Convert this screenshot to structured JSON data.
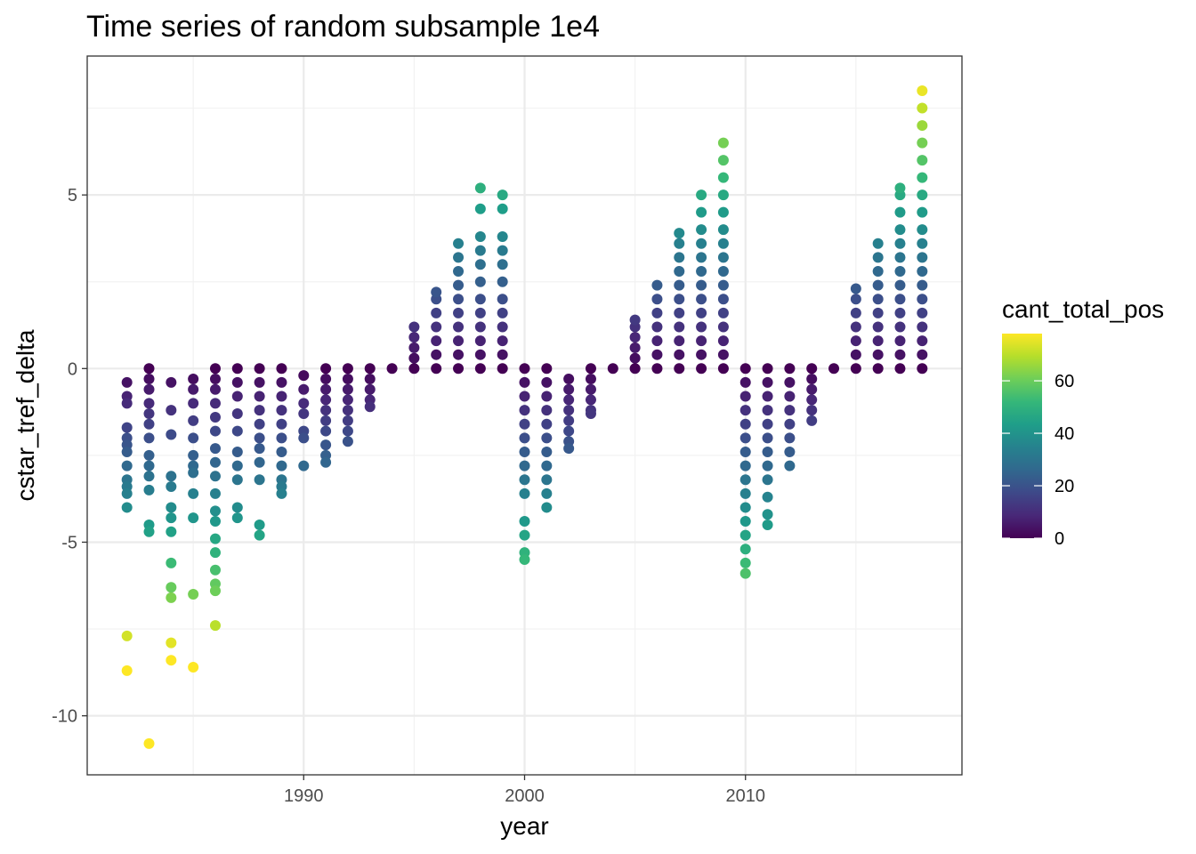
{
  "chart_data": {
    "type": "scatter",
    "title": "Time series of random subsample 1e4",
    "xlabel": "year",
    "ylabel": "cstar_tref_delta",
    "xlim": [
      1980.2,
      2019.8
    ],
    "ylim": [
      -11.7,
      9.0
    ],
    "x_ticks": [
      {
        "value": 1990,
        "label": "1990"
      },
      {
        "value": 2000,
        "label": "2000"
      },
      {
        "value": 2010,
        "label": "2010"
      }
    ],
    "y_ticks": [
      {
        "value": -10,
        "label": "-10"
      },
      {
        "value": -5,
        "label": "-5"
      },
      {
        "value": 0,
        "label": "0"
      },
      {
        "value": 5,
        "label": "5"
      }
    ],
    "grid": true,
    "color_variable": "cant_total_pos",
    "color_scale": {
      "name": "viridis",
      "min": 0,
      "max": 78,
      "colors": [
        "#440154",
        "#482878",
        "#3e4989",
        "#31688e",
        "#26828e",
        "#1f9e89",
        "#35b779",
        "#6ece58",
        "#b5de2b",
        "#fde725"
      ],
      "ticks": [
        {
          "value": 0,
          "label": "0"
        },
        {
          "value": 20,
          "label": "20"
        },
        {
          "value": 40,
          "label": "40"
        },
        {
          "value": 60,
          "label": "60"
        }
      ]
    },
    "legend_position": "right",
    "series": [
      {
        "year": 1982,
        "y": [
          -0.4,
          -0.8,
          -1.0,
          -1.7,
          -2.0,
          -2.2,
          -2.4,
          -2.8,
          -3.2,
          -3.4,
          -3.6,
          -4.0,
          -7.7,
          -8.7
        ]
      },
      {
        "year": 1983,
        "y": [
          0.0,
          -0.3,
          -0.6,
          -1.0,
          -1.3,
          -1.6,
          -2.0,
          -2.5,
          -2.8,
          -3.1,
          -3.5,
          -4.5,
          -4.7,
          -10.8
        ]
      },
      {
        "year": 1984,
        "y": [
          -0.4,
          -1.2,
          -1.9,
          -3.1,
          -3.4,
          -4.0,
          -4.3,
          -4.7,
          -5.6,
          -6.3,
          -6.6,
          -7.9,
          -8.4
        ]
      },
      {
        "year": 1985,
        "y": [
          -0.3,
          -0.6,
          -1.0,
          -1.5,
          -2.0,
          -2.5,
          -2.8,
          -3.0,
          -3.6,
          -4.3,
          -6.5,
          -8.6
        ]
      },
      {
        "year": 1986,
        "y": [
          0.0,
          -0.3,
          -0.6,
          -1.0,
          -1.4,
          -1.8,
          -2.3,
          -2.7,
          -3.1,
          -3.6,
          -4.1,
          -4.4,
          -4.9,
          -5.3,
          -5.8,
          -6.2,
          -6.4,
          -7.4
        ]
      },
      {
        "year": 1987,
        "y": [
          0.0,
          -0.4,
          -0.8,
          -1.3,
          -1.8,
          -2.4,
          -2.8,
          -3.2,
          -4.0,
          -4.3
        ]
      },
      {
        "year": 1988,
        "y": [
          0.0,
          -0.4,
          -0.8,
          -1.2,
          -1.6,
          -2.0,
          -2.3,
          -2.7,
          -3.2,
          -4.5,
          -4.8
        ]
      },
      {
        "year": 1989,
        "y": [
          0.0,
          -0.4,
          -0.8,
          -1.2,
          -1.6,
          -2.0,
          -2.4,
          -2.8,
          -3.2,
          -3.4,
          -3.6
        ]
      },
      {
        "year": 1990,
        "y": [
          -0.2,
          -0.6,
          -1.0,
          -1.3,
          -1.8,
          -2.0,
          -2.8
        ]
      },
      {
        "year": 1991,
        "y": [
          0.0,
          -0.3,
          -0.6,
          -0.9,
          -1.2,
          -1.5,
          -1.8,
          -2.2,
          -2.5,
          -2.7
        ]
      },
      {
        "year": 1992,
        "y": [
          0.0,
          -0.3,
          -0.6,
          -0.9,
          -1.2,
          -1.5,
          -1.8,
          -2.1
        ]
      },
      {
        "year": 1993,
        "y": [
          0.0,
          -0.3,
          -0.6,
          -0.9,
          -1.1
        ]
      },
      {
        "year": 1994,
        "y": [
          0.0
        ]
      },
      {
        "year": 1995,
        "y": [
          0.0,
          0.3,
          0.6,
          0.9,
          1.2
        ]
      },
      {
        "year": 1996,
        "y": [
          0.0,
          0.4,
          0.8,
          1.2,
          1.6,
          2.0,
          2.2
        ]
      },
      {
        "year": 1997,
        "y": [
          0.0,
          0.4,
          0.8,
          1.2,
          1.6,
          2.0,
          2.4,
          2.8,
          3.2,
          3.6
        ]
      },
      {
        "year": 1998,
        "y": [
          0.0,
          0.4,
          0.8,
          1.2,
          1.6,
          2.0,
          2.5,
          3.0,
          3.4,
          3.8,
          4.6,
          5.2
        ]
      },
      {
        "year": 1999,
        "y": [
          0.0,
          0.4,
          0.8,
          1.2,
          1.6,
          2.0,
          2.5,
          3.0,
          3.4,
          3.8,
          4.6,
          5.0
        ]
      },
      {
        "year": 2000,
        "y": [
          0.0,
          -0.4,
          -0.8,
          -1.2,
          -1.6,
          -2.0,
          -2.4,
          -2.8,
          -3.2,
          -3.6,
          -4.4,
          -4.8,
          -5.3,
          -5.5
        ]
      },
      {
        "year": 2001,
        "y": [
          0.0,
          -0.4,
          -0.8,
          -1.2,
          -1.6,
          -2.0,
          -2.4,
          -2.8,
          -3.2,
          -3.6,
          -4.0
        ]
      },
      {
        "year": 2002,
        "y": [
          -0.3,
          -0.6,
          -0.9,
          -1.2,
          -1.5,
          -1.8,
          -2.1,
          -2.3
        ]
      },
      {
        "year": 2003,
        "y": [
          0.0,
          -0.3,
          -0.6,
          -0.9,
          -1.2,
          -1.3
        ]
      },
      {
        "year": 2004,
        "y": [
          0.0
        ]
      },
      {
        "year": 2005,
        "y": [
          0.0,
          0.3,
          0.6,
          0.9,
          1.2,
          1.4
        ]
      },
      {
        "year": 2006,
        "y": [
          0.0,
          0.4,
          0.8,
          1.2,
          1.6,
          2.0,
          2.4
        ]
      },
      {
        "year": 2007,
        "y": [
          0.0,
          0.4,
          0.8,
          1.2,
          1.6,
          2.0,
          2.4,
          2.8,
          3.2,
          3.6,
          3.9
        ]
      },
      {
        "year": 2008,
        "y": [
          0.0,
          0.4,
          0.8,
          1.2,
          1.6,
          2.0,
          2.4,
          2.8,
          3.2,
          3.6,
          4.0,
          4.5,
          5.0
        ]
      },
      {
        "year": 2009,
        "y": [
          0.0,
          0.4,
          0.8,
          1.2,
          1.6,
          2.0,
          2.4,
          2.8,
          3.2,
          3.6,
          4.0,
          4.5,
          5.0,
          5.5,
          6.0,
          6.5
        ]
      },
      {
        "year": 2010,
        "y": [
          0.0,
          -0.4,
          -0.8,
          -1.2,
          -1.6,
          -2.0,
          -2.4,
          -2.8,
          -3.2,
          -3.6,
          -4.0,
          -4.4,
          -4.8,
          -5.2,
          -5.6,
          -5.9
        ]
      },
      {
        "year": 2011,
        "y": [
          0.0,
          -0.4,
          -0.8,
          -1.2,
          -1.6,
          -2.0,
          -2.4,
          -2.8,
          -3.2,
          -3.7,
          -4.2,
          -4.5
        ]
      },
      {
        "year": 2012,
        "y": [
          0.0,
          -0.4,
          -0.8,
          -1.2,
          -1.6,
          -2.0,
          -2.4,
          -2.8
        ]
      },
      {
        "year": 2013,
        "y": [
          0.0,
          -0.3,
          -0.6,
          -0.9,
          -1.2,
          -1.5
        ]
      },
      {
        "year": 2014,
        "y": [
          0.0
        ]
      },
      {
        "year": 2015,
        "y": [
          0.0,
          0.4,
          0.8,
          1.2,
          1.6,
          2.0,
          2.3
        ]
      },
      {
        "year": 2016,
        "y": [
          0.0,
          0.4,
          0.8,
          1.2,
          1.6,
          2.0,
          2.4,
          2.8,
          3.2,
          3.6
        ]
      },
      {
        "year": 2017,
        "y": [
          0.0,
          0.4,
          0.8,
          1.2,
          1.6,
          2.0,
          2.4,
          2.8,
          3.2,
          3.6,
          4.0,
          4.5,
          5.0,
          5.2
        ]
      },
      {
        "year": 2018,
        "y": [
          0.0,
          0.4,
          0.8,
          1.2,
          1.6,
          2.0,
          2.4,
          2.8,
          3.2,
          3.6,
          4.0,
          4.5,
          5.0,
          5.5,
          6.0,
          6.5,
          7.0,
          7.5,
          8.0
        ]
      }
    ]
  }
}
